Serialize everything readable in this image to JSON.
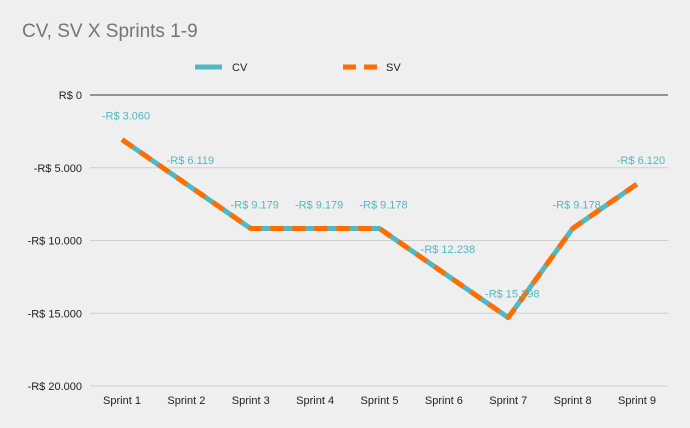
{
  "chart_data": {
    "type": "line",
    "title": "CV, SV X Sprints 1-9",
    "categories": [
      "Sprint 1",
      "Sprint 2",
      "Sprint 3",
      "Sprint 4",
      "Sprint 5",
      "Sprint 6",
      "Sprint 7",
      "Sprint 8",
      "Sprint 9"
    ],
    "series": [
      {
        "name": "CV",
        "color": "#4fb8c3",
        "values": [
          -3060,
          -6119,
          -9179,
          -9179,
          -9178,
          -12238,
          -15298,
          -9178,
          -6120
        ]
      },
      {
        "name": "SV",
        "color": "#ff6d01",
        "values": [
          -3060,
          -6119,
          -9179,
          -9179,
          -9178,
          -12238,
          -15298,
          -9178,
          -6120
        ]
      }
    ],
    "data_labels": [
      "-R$ 3.060",
      "-R$ 6.119",
      "-R$ 9.179",
      "-R$ 9.179",
      "-R$ 9.178",
      "-R$ 12.238",
      "-R$ 15.298",
      "-R$ 9.178",
      "-R$ 6.120"
    ],
    "y_ticks": [
      0,
      -5000,
      -10000,
      -15000,
      -20000
    ],
    "y_tick_labels": [
      "R$ 0",
      "-R$ 5.000",
      "-R$ 10.000",
      "-R$ 15.000",
      "-R$ 20.000"
    ],
    "ylim": [
      -20000,
      0
    ],
    "grid": true,
    "legend_position": "top"
  }
}
